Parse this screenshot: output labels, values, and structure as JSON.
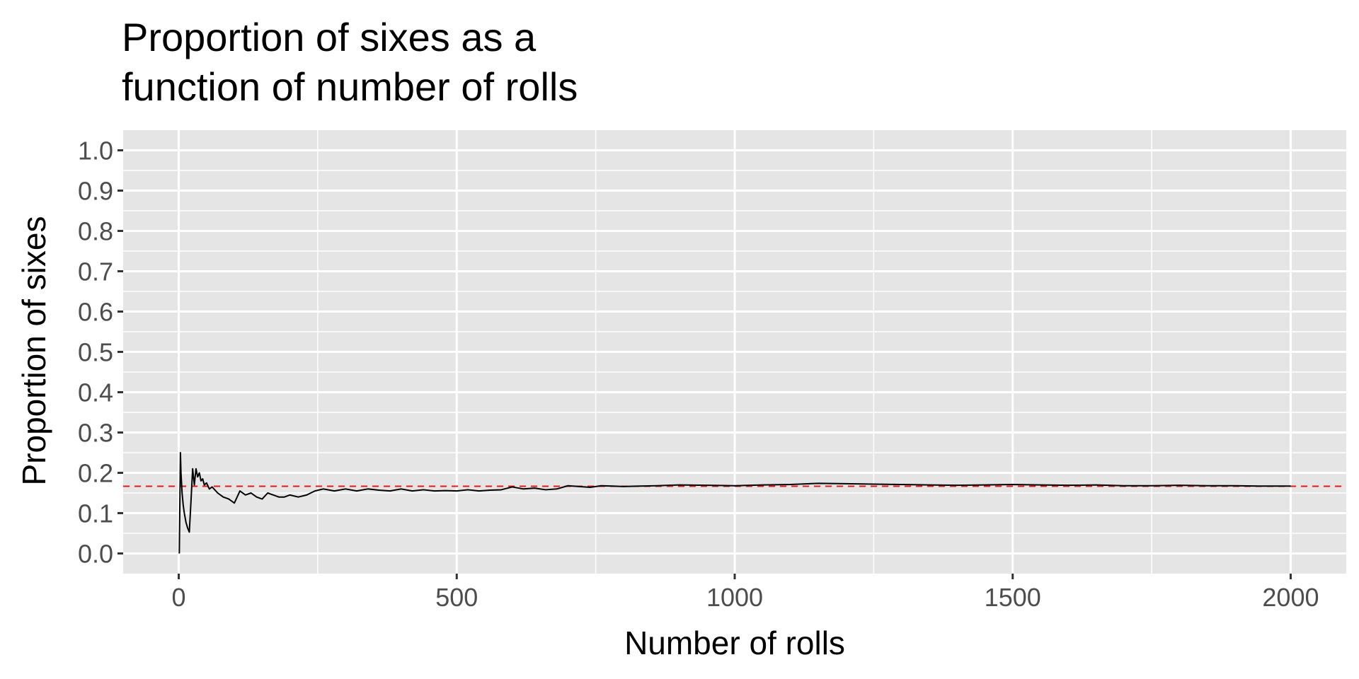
{
  "chart_data": {
    "type": "line",
    "title_lines": [
      "Proportion of sixes as a",
      "function of number of rolls"
    ],
    "xlabel": "Number of rolls",
    "ylabel": "Proportion of sixes",
    "xlim": [
      -100,
      2100
    ],
    "ylim": [
      -0.05,
      1.05
    ],
    "x_ticks": [
      0,
      500,
      1000,
      1500,
      2000
    ],
    "x_tick_labels": [
      "0",
      "500",
      "1000",
      "1500",
      "2000"
    ],
    "y_ticks": [
      0.0,
      0.1,
      0.2,
      0.3,
      0.4,
      0.5,
      0.6,
      0.7,
      0.8,
      0.9,
      1.0
    ],
    "y_tick_labels": [
      "0.0",
      "0.1",
      "0.2",
      "0.3",
      "0.4",
      "0.5",
      "0.6",
      "0.7",
      "0.8",
      "0.9",
      "1.0"
    ],
    "grid": true,
    "reference_line": {
      "y": 0.1667,
      "color": "#e41a1c",
      "style": "dashed"
    },
    "series": [
      {
        "color": "#000000",
        "x": [
          1,
          3,
          4,
          6,
          8,
          10,
          13,
          16,
          19,
          22,
          25,
          28,
          31,
          34,
          37,
          40,
          43,
          46,
          50,
          55,
          60,
          70,
          80,
          90,
          100,
          110,
          120,
          130,
          140,
          150,
          160,
          170,
          180,
          190,
          200,
          215,
          230,
          245,
          260,
          280,
          300,
          320,
          340,
          360,
          380,
          400,
          420,
          440,
          460,
          480,
          500,
          520,
          540,
          560,
          580,
          600,
          620,
          640,
          660,
          680,
          700,
          720,
          740,
          760,
          780,
          800,
          830,
          860,
          900,
          950,
          1000,
          1050,
          1100,
          1150,
          1200,
          1250,
          1300,
          1350,
          1400,
          1450,
          1500,
          1550,
          1600,
          1650,
          1700,
          1750,
          1800,
          1850,
          1900,
          1950,
          2000
        ],
        "y": [
          0.0,
          0.25,
          0.2,
          0.15,
          0.12,
          0.1,
          0.077,
          0.063,
          0.053,
          0.13,
          0.21,
          0.17,
          0.21,
          0.19,
          0.2,
          0.18,
          0.185,
          0.17,
          0.175,
          0.16,
          0.165,
          0.15,
          0.14,
          0.135,
          0.125,
          0.155,
          0.145,
          0.15,
          0.14,
          0.135,
          0.15,
          0.145,
          0.14,
          0.14,
          0.145,
          0.14,
          0.145,
          0.155,
          0.16,
          0.155,
          0.16,
          0.155,
          0.16,
          0.157,
          0.155,
          0.16,
          0.155,
          0.158,
          0.155,
          0.156,
          0.155,
          0.158,
          0.155,
          0.157,
          0.158,
          0.165,
          0.16,
          0.162,
          0.158,
          0.16,
          0.168,
          0.166,
          0.164,
          0.168,
          0.167,
          0.166,
          0.167,
          0.168,
          0.17,
          0.169,
          0.168,
          0.17,
          0.171,
          0.174,
          0.173,
          0.172,
          0.171,
          0.17,
          0.169,
          0.17,
          0.171,
          0.17,
          0.169,
          0.17,
          0.168,
          0.168,
          0.169,
          0.168,
          0.168,
          0.167,
          0.167
        ]
      }
    ]
  }
}
